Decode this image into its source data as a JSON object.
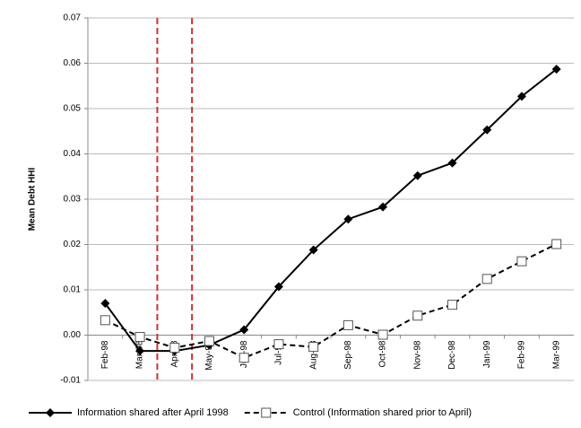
{
  "chart_data": {
    "type": "line",
    "ylabel": "Mean Debt HHI",
    "categories": [
      "Feb-98",
      "Mar-98",
      "Apr-98",
      "May-98",
      "Jun-98",
      "Jul-98",
      "Aug-98",
      "Sep-98",
      "Oct-98",
      "Nov-98",
      "Dec-98",
      "Jan-99",
      "Feb-99",
      "Mar-99"
    ],
    "series": [
      {
        "name": "Information shared after April 1998",
        "color": "#000000",
        "marker": "diamond",
        "dash": false,
        "values": [
          0.007,
          -0.0035,
          -0.0035,
          -0.0022,
          0.0012,
          0.0107,
          0.0188,
          0.0256,
          0.0283,
          0.0352,
          0.038,
          0.0453,
          0.0527,
          0.0587
        ]
      },
      {
        "name": "Control (Information shared prior to April)",
        "color": "#000000",
        "marker": "square",
        "dash": true,
        "values": [
          0.0033,
          -0.0004,
          -0.0028,
          -0.0013,
          -0.005,
          -0.002,
          -0.0026,
          0.0022,
          0.0001,
          0.0043,
          0.0067,
          0.0124,
          0.0163,
          0.0201
        ]
      }
    ],
    "ylim": [
      -0.01,
      0.07
    ],
    "yticks": [
      -0.01,
      {
        "value": 0,
        "label": "0.00"
      },
      0.01,
      0.02,
      0.03,
      0.04,
      0.05,
      0.06,
      0.07
    ],
    "grid": true,
    "legend": "bottom"
  }
}
